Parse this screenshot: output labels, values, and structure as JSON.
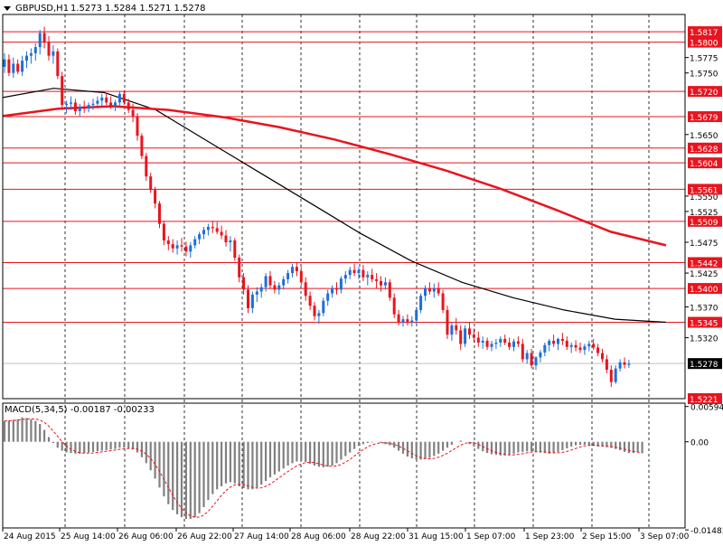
{
  "header": {
    "symbol_label": "GBPUSD,H1",
    "ohlc_label": "1.5273 1.5284 1.5271 1.5278"
  },
  "colors": {
    "background": "#ffffff",
    "frame": "#000000",
    "grid": "#000000",
    "bull_candle": "#1e6fd9",
    "bear_candle": "#e8141e",
    "level_line": "#e8141e",
    "level_tag": "#e8141e",
    "ma_fast": "#000000",
    "ma_slow": "#e8141e",
    "macd_hist": "#808080",
    "macd_signal": "#e8141e",
    "price_tag": "#000000"
  },
  "chart_data": [
    {
      "type": "candlestick",
      "title": "GBPUSD,H1",
      "ylim": [
        1.5221,
        1.5845
      ],
      "x_labels": [
        "24 Aug 2015",
        "25 Aug 14:00",
        "26 Aug 06:00",
        "26 Aug 22:00",
        "27 Aug 14:00",
        "28 Aug 06:00",
        "28 Aug 22:00",
        "31 Aug 15:00",
        "1 Sep 07:00",
        "1 Sep 23:00",
        "2 Sep 15:00",
        "3 Sep 07:00"
      ],
      "y_ticks": [
        "1.5775",
        "1.5750",
        "1.5650",
        "1.5550",
        "1.5525",
        "1.5475",
        "1.5425",
        "1.5370",
        "1.5320"
      ],
      "levels": [
        "1.5817",
        "1.5800",
        "1.5720",
        "1.5679",
        "1.5628",
        "1.5604",
        "1.5561",
        "1.5509",
        "1.5442",
        "1.5400",
        "1.5345",
        "1.5221"
      ],
      "current_price": "1.5278",
      "candles": [
        [
          1.576,
          1.5782,
          1.575,
          1.5772
        ],
        [
          1.5772,
          1.578,
          1.5745,
          1.575
        ],
        [
          1.575,
          1.5775,
          1.5742,
          1.5765
        ],
        [
          1.5765,
          1.5772,
          1.5748,
          1.5752
        ],
        [
          1.5752,
          1.5778,
          1.5745,
          1.577
        ],
        [
          1.577,
          1.5785,
          1.5758,
          1.5778
        ],
        [
          1.5778,
          1.579,
          1.5765,
          1.5782
        ],
        [
          1.5782,
          1.5798,
          1.577,
          1.5792
        ],
        [
          1.5792,
          1.582,
          1.578,
          1.5815
        ],
        [
          1.5815,
          1.5825,
          1.579,
          1.58
        ],
        [
          1.58,
          1.581,
          1.577,
          1.5778
        ],
        [
          1.5778,
          1.5795,
          1.5765,
          1.5785
        ],
        [
          1.5785,
          1.579,
          1.574,
          1.5745
        ],
        [
          1.5745,
          1.5752,
          1.569,
          1.5698
        ],
        [
          1.5698,
          1.5705,
          1.5684,
          1.57
        ],
        [
          1.57,
          1.5712,
          1.569,
          1.5702
        ],
        [
          1.5702,
          1.5708,
          1.5682,
          1.5688
        ],
        [
          1.5688,
          1.57,
          1.568,
          1.5695
        ],
        [
          1.5695,
          1.5705,
          1.5685,
          1.5692
        ],
        [
          1.5692,
          1.5702,
          1.5686,
          1.5698
        ],
        [
          1.5698,
          1.5708,
          1.569,
          1.57
        ],
        [
          1.57,
          1.5712,
          1.5692,
          1.5705
        ],
        [
          1.5705,
          1.5716,
          1.5695,
          1.571
        ],
        [
          1.571,
          1.5718,
          1.5698,
          1.5702
        ],
        [
          1.5702,
          1.5712,
          1.5692,
          1.5696
        ],
        [
          1.5696,
          1.5706,
          1.5688,
          1.5702
        ],
        [
          1.5702,
          1.572,
          1.5695,
          1.5716
        ],
        [
          1.5716,
          1.5722,
          1.5698,
          1.5702
        ],
        [
          1.5702,
          1.5708,
          1.5685,
          1.569
        ],
        [
          1.569,
          1.57,
          1.567,
          1.568
        ],
        [
          1.568,
          1.5685,
          1.564,
          1.5648
        ],
        [
          1.5648,
          1.5652,
          1.561,
          1.5615
        ],
        [
          1.5615,
          1.562,
          1.5575,
          1.5582
        ],
        [
          1.5582,
          1.5588,
          1.5555,
          1.556
        ],
        [
          1.556,
          1.5565,
          1.553,
          1.5538
        ],
        [
          1.5538,
          1.5542,
          1.5498,
          1.5505
        ],
        [
          1.5505,
          1.551,
          1.547,
          1.5478
        ],
        [
          1.5478,
          1.5485,
          1.5462,
          1.5472
        ],
        [
          1.5472,
          1.548,
          1.5458,
          1.5465
        ],
        [
          1.5465,
          1.5478,
          1.5455,
          1.547
        ],
        [
          1.547,
          1.5482,
          1.546,
          1.5468
        ],
        [
          1.5468,
          1.5476,
          1.5452,
          1.546
        ],
        [
          1.546,
          1.5475,
          1.545,
          1.547
        ],
        [
          1.547,
          1.5485,
          1.5465,
          1.548
        ],
        [
          1.548,
          1.5492,
          1.5472,
          1.5488
        ],
        [
          1.5488,
          1.55,
          1.548,
          1.5495
        ],
        [
          1.5495,
          1.5505,
          1.5486,
          1.55
        ],
        [
          1.55,
          1.551,
          1.549,
          1.5498
        ],
        [
          1.5498,
          1.5508,
          1.5488,
          1.5492
        ],
        [
          1.5492,
          1.5502,
          1.548,
          1.5486
        ],
        [
          1.5486,
          1.5495,
          1.5468,
          1.5475
        ],
        [
          1.5475,
          1.5485,
          1.546,
          1.5478
        ],
        [
          1.5478,
          1.5482,
          1.5445,
          1.545
        ],
        [
          1.545,
          1.5455,
          1.541,
          1.5418
        ],
        [
          1.5418,
          1.5425,
          1.539,
          1.5398
        ],
        [
          1.5398,
          1.5405,
          1.536,
          1.5368
        ],
        [
          1.5368,
          1.5395,
          1.536,
          1.539
        ],
        [
          1.539,
          1.5402,
          1.5378,
          1.5395
        ],
        [
          1.5395,
          1.5408,
          1.5385,
          1.5402
        ],
        [
          1.5402,
          1.5425,
          1.5395,
          1.542
        ],
        [
          1.542,
          1.5428,
          1.54,
          1.5405
        ],
        [
          1.5405,
          1.5412,
          1.5392,
          1.5398
        ],
        [
          1.5398,
          1.541,
          1.539,
          1.5405
        ],
        [
          1.5405,
          1.542,
          1.5398,
          1.5415
        ],
        [
          1.5415,
          1.543,
          1.5408,
          1.5425
        ],
        [
          1.5425,
          1.544,
          1.5418,
          1.5435
        ],
        [
          1.5435,
          1.5442,
          1.542,
          1.5428
        ],
        [
          1.5428,
          1.5435,
          1.5405,
          1.541
        ],
        [
          1.541,
          1.5418,
          1.538,
          1.5388
        ],
        [
          1.5388,
          1.5395,
          1.5365,
          1.5372
        ],
        [
          1.5372,
          1.5378,
          1.5348,
          1.5355
        ],
        [
          1.5355,
          1.5365,
          1.5342,
          1.536
        ],
        [
          1.536,
          1.5385,
          1.5355,
          1.538
        ],
        [
          1.538,
          1.5398,
          1.5372,
          1.5392
        ],
        [
          1.5392,
          1.5405,
          1.5385,
          1.54
        ],
        [
          1.54,
          1.541,
          1.539,
          1.5398
        ],
        [
          1.5398,
          1.542,
          1.5392,
          1.5416
        ],
        [
          1.5416,
          1.5428,
          1.5408,
          1.5422
        ],
        [
          1.5422,
          1.5435,
          1.5415,
          1.543
        ],
        [
          1.543,
          1.544,
          1.542,
          1.5425
        ],
        [
          1.5425,
          1.5435,
          1.5415,
          1.543
        ],
        [
          1.543,
          1.5438,
          1.5412,
          1.5418
        ],
        [
          1.5418,
          1.5428,
          1.5405,
          1.5422
        ],
        [
          1.5422,
          1.5432,
          1.541,
          1.5415
        ],
        [
          1.5415,
          1.5425,
          1.54,
          1.5412
        ],
        [
          1.5412,
          1.542,
          1.5395,
          1.5405
        ],
        [
          1.5405,
          1.5418,
          1.5398,
          1.541
        ],
        [
          1.541,
          1.5415,
          1.538,
          1.5385
        ],
        [
          1.5385,
          1.5392,
          1.5352,
          1.5358
        ],
        [
          1.5358,
          1.5365,
          1.534,
          1.5345
        ],
        [
          1.5345,
          1.5355,
          1.5338,
          1.535
        ],
        [
          1.535,
          1.5358,
          1.534,
          1.5345
        ],
        [
          1.5345,
          1.5355,
          1.5338,
          1.5348
        ],
        [
          1.5348,
          1.537,
          1.5342,
          1.5365
        ],
        [
          1.5365,
          1.5392,
          1.536,
          1.5388
        ],
        [
          1.5388,
          1.5405,
          1.538,
          1.54
        ],
        [
          1.54,
          1.541,
          1.539,
          1.5395
        ],
        [
          1.5395,
          1.5408,
          1.5385,
          1.54
        ],
        [
          1.54,
          1.541,
          1.5388,
          1.5392
        ],
        [
          1.5392,
          1.5398,
          1.536,
          1.5365
        ],
        [
          1.5365,
          1.5372,
          1.5318,
          1.5325
        ],
        [
          1.5325,
          1.5345,
          1.5315,
          1.534
        ],
        [
          1.534,
          1.5352,
          1.5325,
          1.5332
        ],
        [
          1.5332,
          1.534,
          1.53,
          1.531
        ],
        [
          1.531,
          1.534,
          1.5305,
          1.5335
        ],
        [
          1.5335,
          1.5345,
          1.5318,
          1.5325
        ],
        [
          1.5325,
          1.5335,
          1.5312,
          1.532
        ],
        [
          1.532,
          1.533,
          1.5305,
          1.5312
        ],
        [
          1.5312,
          1.5322,
          1.5302,
          1.5315
        ],
        [
          1.5315,
          1.532,
          1.53,
          1.5305
        ],
        [
          1.5305,
          1.5315,
          1.5298,
          1.531
        ],
        [
          1.531,
          1.5318,
          1.5302,
          1.5312
        ],
        [
          1.5312,
          1.5322,
          1.5305,
          1.5318
        ],
        [
          1.5318,
          1.5325,
          1.5308,
          1.5312
        ],
        [
          1.5312,
          1.532,
          1.53,
          1.5305
        ],
        [
          1.5305,
          1.5318,
          1.5298,
          1.5314
        ],
        [
          1.5314,
          1.5322,
          1.5305,
          1.531
        ],
        [
          1.531,
          1.5318,
          1.528,
          1.5285
        ],
        [
          1.5285,
          1.53,
          1.5278,
          1.5295
        ],
        [
          1.5295,
          1.5302,
          1.527,
          1.5275
        ],
        [
          1.5275,
          1.529,
          1.5268,
          1.5288
        ],
        [
          1.5288,
          1.53,
          1.528,
          1.5296
        ],
        [
          1.5296,
          1.5312,
          1.529,
          1.5308
        ],
        [
          1.5308,
          1.5318,
          1.5298,
          1.5315
        ],
        [
          1.5315,
          1.5325,
          1.5305,
          1.531
        ],
        [
          1.531,
          1.532,
          1.53,
          1.5318
        ],
        [
          1.5318,
          1.5328,
          1.5308,
          1.5315
        ],
        [
          1.5315,
          1.5322,
          1.53,
          1.5305
        ],
        [
          1.5305,
          1.5312,
          1.5295,
          1.5308
        ],
        [
          1.5308,
          1.5316,
          1.5298,
          1.5304
        ],
        [
          1.5304,
          1.5312,
          1.5295,
          1.53
        ],
        [
          1.53,
          1.531,
          1.5292,
          1.5306
        ],
        [
          1.5306,
          1.5315,
          1.5298,
          1.531
        ],
        [
          1.531,
          1.5318,
          1.53,
          1.5304
        ],
        [
          1.5304,
          1.531,
          1.529,
          1.5295
        ],
        [
          1.5295,
          1.5302,
          1.528,
          1.5285
        ],
        [
          1.5285,
          1.5292,
          1.5262,
          1.5268
        ],
        [
          1.5268,
          1.5275,
          1.524,
          1.5248
        ],
        [
          1.5248,
          1.5275,
          1.5245,
          1.527
        ],
        [
          1.527,
          1.5285,
          1.5265,
          1.528
        ],
        [
          1.528,
          1.5288,
          1.527,
          1.5276
        ],
        [
          1.5276,
          1.5284,
          1.5271,
          1.5278
        ]
      ],
      "ma_fast": [
        1.571,
        1.5725,
        1.5718,
        1.569,
        1.564,
        1.559,
        1.554,
        1.549,
        1.5445,
        1.541,
        1.5385,
        1.5365,
        1.535,
        1.5345
      ],
      "ma_slow": [
        1.568,
        1.5692,
        1.5696,
        1.569,
        1.5678,
        1.5662,
        1.5642,
        1.5618,
        1.5592,
        1.5562,
        1.5528,
        1.5492,
        1.547
      ]
    },
    {
      "type": "bar",
      "title": "MACD(5,34,5) -0.00187 -0.00233",
      "ylim": [
        -0.0145,
        0.0065
      ],
      "y_ticks": [
        "0.00594",
        "0.00",
        "-0.01483"
      ],
      "macd": [
        0.0035,
        0.0036,
        0.0037,
        0.0038,
        0.0041,
        0.004,
        0.0038,
        0.0035,
        0.003,
        0.002,
        0.0008,
        -0.0002,
        -0.001,
        -0.0015,
        -0.0018,
        -0.0019,
        -0.002,
        -0.002,
        -0.0019,
        -0.0018,
        -0.0017,
        -0.0016,
        -0.0015,
        -0.0014,
        -0.0013,
        -0.0012,
        -0.001,
        -0.001,
        -0.0011,
        -0.0013,
        -0.0018,
        -0.0026,
        -0.0036,
        -0.0048,
        -0.0062,
        -0.0077,
        -0.0092,
        -0.0105,
        -0.0115,
        -0.0122,
        -0.0127,
        -0.013,
        -0.013,
        -0.0127,
        -0.012,
        -0.011,
        -0.0098,
        -0.0088,
        -0.008,
        -0.0075,
        -0.007,
        -0.0068,
        -0.007,
        -0.0075,
        -0.0078,
        -0.008,
        -0.008,
        -0.0077,
        -0.0072,
        -0.0066,
        -0.006,
        -0.0055,
        -0.005,
        -0.0045,
        -0.004,
        -0.0036,
        -0.0033,
        -0.0032,
        -0.0034,
        -0.0037,
        -0.004,
        -0.0042,
        -0.0043,
        -0.0042,
        -0.004,
        -0.0036,
        -0.003,
        -0.0024,
        -0.0018,
        -0.0012,
        -0.0007,
        -0.0004,
        -0.0002,
        -0.0001,
        0.0,
        -0.0002,
        -0.0004,
        -0.0006,
        -0.001,
        -0.0015,
        -0.002,
        -0.0025,
        -0.0028,
        -0.003,
        -0.003,
        -0.0029,
        -0.0027,
        -0.0024,
        -0.002,
        -0.0015,
        -0.001,
        -0.0005,
        0.0,
        0.0002,
        0.0,
        -0.0004,
        -0.0008,
        -0.0012,
        -0.0016,
        -0.0019,
        -0.0021,
        -0.0022,
        -0.0023,
        -0.0023,
        -0.0022,
        -0.002,
        -0.0018,
        -0.0017,
        -0.0016,
        -0.0016,
        -0.0017,
        -0.0018,
        -0.0019,
        -0.002,
        -0.0019,
        -0.0017,
        -0.0014,
        -0.0011,
        -0.0008,
        -0.0006,
        -0.0005,
        -0.0005,
        -0.0006,
        -0.0007,
        -0.0008,
        -0.0008,
        -0.0009,
        -0.001,
        -0.0012,
        -0.0014,
        -0.0017,
        -0.0019,
        -0.0019,
        -0.0018,
        -0.0019
      ]
    }
  ]
}
